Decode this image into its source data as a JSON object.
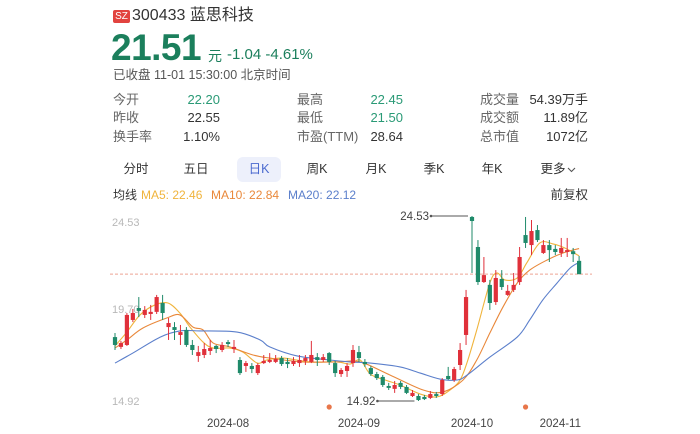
{
  "header": {
    "exchange_badge": "SZ",
    "code_name": "300433 蓝思科技",
    "price": "21.51",
    "unit": "元",
    "change": "-1.04 -4.61%",
    "status": "已收盘 11-01 15:30:00 北京时间"
  },
  "stats": [
    [
      {
        "label": "今开",
        "value": "22.20",
        "tone": "down"
      },
      {
        "label": "最高",
        "value": "22.45",
        "tone": "down"
      },
      {
        "label": "成交量",
        "value": "54.39万手",
        "tone": "neutral"
      }
    ],
    [
      {
        "label": "昨收",
        "value": "22.55",
        "tone": "neutral"
      },
      {
        "label": "最低",
        "value": "21.50",
        "tone": "down"
      },
      {
        "label": "成交额",
        "value": "11.89亿",
        "tone": "neutral"
      }
    ],
    [
      {
        "label": "换手率",
        "value": "1.10%",
        "tone": "neutral"
      },
      {
        "label": "市盈(TTM)",
        "value": "28.64",
        "tone": "neutral"
      },
      {
        "label": "总市值",
        "value": "1072亿",
        "tone": "neutral"
      }
    ]
  ],
  "tabs": [
    {
      "label": "分时"
    },
    {
      "label": "五日"
    },
    {
      "label": "日K"
    },
    {
      "label": "周K"
    },
    {
      "label": "月K"
    },
    {
      "label": "季K"
    },
    {
      "label": "年K"
    },
    {
      "label": "更多"
    }
  ],
  "active_tab": 2,
  "ma_legend": {
    "label": "均线",
    "ma5": "MA5: 22.46",
    "ma10": "MA10: 22.84",
    "ma20": "MA20: 22.12"
  },
  "adjust_label": "前复权",
  "colors": {
    "price_down": "#1b7f5c",
    "candle_up": "#e0303a",
    "candle_down": "#1f8a6a",
    "ma5": "#f0b43c",
    "ma10": "#e9883a",
    "ma20": "#5b7fcb",
    "badge": "#e2433f",
    "event_marker": "#e8764a",
    "current_price_line": "#eda393"
  },
  "chart_data": {
    "type": "candlestick",
    "title": "300433 蓝思科技 日K",
    "xlabel": "",
    "ylabel": "",
    "ylim": [
      14.92,
      24.53
    ],
    "grid": false,
    "legend_position": "top-left",
    "y_ticks": [
      {
        "value": 24.53,
        "label": "24.53"
      },
      {
        "value": 19.7,
        "label": "19.70"
      },
      {
        "value": 14.92,
        "label": "14.92"
      }
    ],
    "x_ticks": [
      {
        "index": 19,
        "label": "2024-08"
      },
      {
        "index": 41,
        "label": "2024-09"
      },
      {
        "index": 60,
        "label": "2024-10"
      },
      {
        "index": 78,
        "label": "2024-11"
      }
    ],
    "current_price": 21.51,
    "annotations": [
      {
        "index": 60,
        "value": 24.53,
        "label": "24.53",
        "kind": "max"
      },
      {
        "index": 51,
        "value": 14.92,
        "label": "14.92",
        "kind": "min"
      }
    ],
    "event_markers": [
      {
        "index": 36
      },
      {
        "index": 69
      }
    ],
    "ohlc_fields": [
      "open",
      "high",
      "low",
      "close"
    ],
    "candles": [
      [
        18.24,
        18.45,
        17.57,
        17.83
      ],
      [
        17.73,
        18.04,
        17.62,
        17.93
      ],
      [
        17.83,
        19.49,
        17.78,
        19.39
      ],
      [
        19.13,
        19.7,
        19.02,
        19.49
      ],
      [
        19.75,
        20.32,
        19.28,
        19.6
      ],
      [
        19.39,
        19.85,
        19.23,
        19.65
      ],
      [
        19.44,
        19.91,
        19.13,
        19.55
      ],
      [
        19.55,
        20.43,
        19.44,
        20.32
      ],
      [
        20.01,
        20.43,
        19.13,
        19.49
      ],
      [
        18.76,
        19.23,
        18.09,
        18.97
      ],
      [
        18.76,
        19.02,
        18.09,
        18.61
      ],
      [
        18.35,
        18.87,
        17.83,
        18.5
      ],
      [
        18.61,
        18.76,
        17.73,
        17.83
      ],
      [
        17.83,
        18.09,
        17.31,
        17.57
      ],
      [
        17.26,
        17.78,
        16.95,
        17.46
      ],
      [
        17.31,
        17.93,
        17.15,
        17.62
      ],
      [
        17.52,
        18.09,
        17.31,
        17.67
      ],
      [
        17.78,
        17.83,
        17.41,
        17.62
      ],
      [
        17.57,
        17.98,
        17.46,
        17.83
      ],
      [
        17.98,
        18.09,
        17.73,
        17.88
      ],
      [
        17.62,
        18.09,
        17.41,
        17.73
      ],
      [
        17.05,
        17.2,
        16.27,
        16.37
      ],
      [
        16.74,
        17.0,
        16.43,
        16.89
      ],
      [
        16.74,
        16.89,
        16.37,
        16.58
      ],
      [
        16.37,
        16.89,
        16.27,
        16.79
      ],
      [
        16.89,
        17.31,
        16.84,
        17.0
      ],
      [
        16.95,
        17.41,
        16.89,
        17.05
      ],
      [
        16.95,
        17.31,
        16.89,
        17.1
      ],
      [
        17.15,
        17.26,
        16.74,
        16.84
      ],
      [
        16.95,
        17.15,
        16.63,
        16.84
      ],
      [
        16.84,
        17.2,
        16.74,
        17.0
      ],
      [
        16.89,
        17.31,
        16.69,
        17.05
      ],
      [
        17.0,
        17.31,
        16.79,
        17.15
      ],
      [
        16.95,
        18.04,
        16.89,
        17.31
      ],
      [
        17.2,
        17.41,
        16.74,
        17.05
      ],
      [
        17.05,
        17.36,
        16.95,
        17.2
      ],
      [
        17.41,
        17.46,
        16.79,
        16.95
      ],
      [
        16.89,
        17.0,
        16.17,
        16.37
      ],
      [
        16.32,
        16.63,
        16.17,
        16.53
      ],
      [
        16.48,
        16.89,
        16.17,
        16.74
      ],
      [
        16.89,
        17.83,
        16.69,
        17.57
      ],
      [
        17.46,
        17.78,
        16.95,
        17.15
      ],
      [
        16.95,
        17.1,
        16.69,
        16.84
      ],
      [
        16.63,
        16.74,
        16.22,
        16.32
      ],
      [
        16.32,
        16.43,
        16.01,
        16.11
      ],
      [
        16.17,
        16.27,
        15.65,
        15.75
      ],
      [
        15.7,
        15.86,
        15.49,
        15.6
      ],
      [
        15.55,
        15.96,
        15.34,
        15.75
      ],
      [
        15.86,
        15.96,
        15.54,
        15.65
      ],
      [
        15.65,
        15.75,
        15.28,
        15.34
      ],
      [
        15.18,
        15.49,
        15.13,
        15.34
      ],
      [
        15.18,
        15.28,
        14.92,
        14.97
      ],
      [
        15.13,
        15.23,
        14.97,
        15.02
      ],
      [
        15.08,
        15.44,
        15.02,
        15.28
      ],
      [
        15.28,
        15.39,
        15.08,
        15.18
      ],
      [
        15.28,
        16.11,
        15.18,
        16.01
      ],
      [
        16.22,
        16.69,
        16.01,
        16.06
      ],
      [
        16.01,
        16.69,
        15.91,
        16.58
      ],
      [
        16.79,
        17.93,
        16.53,
        17.57
      ],
      [
        18.35,
        20.69,
        17.83,
        20.32
      ],
      [
        24.48,
        24.53,
        21.57,
        24.27
      ],
      [
        22.92,
        23.28,
        20.95,
        21.1
      ],
      [
        21.1,
        22.4,
        21.05,
        21.46
      ],
      [
        20.95,
        21.21,
        19.65,
        20.01
      ],
      [
        20.06,
        21.72,
        19.91,
        21.31
      ],
      [
        21.26,
        21.72,
        20.69,
        20.84
      ],
      [
        20.43,
        20.95,
        20.38,
        20.64
      ],
      [
        20.69,
        21.57,
        20.58,
        20.95
      ],
      [
        21.1,
        22.92,
        20.95,
        22.4
      ],
      [
        23.54,
        24.48,
        22.87,
        23.13
      ],
      [
        23.02,
        24.32,
        22.5,
        23.75
      ],
      [
        23.8,
        24.06,
        23.18,
        23.28
      ],
      [
        22.61,
        23.28,
        22.56,
        23.02
      ],
      [
        23.02,
        23.28,
        22.14,
        22.76
      ],
      [
        22.82,
        23.02,
        22.5,
        22.66
      ],
      [
        22.61,
        23.39,
        22.4,
        22.87
      ],
      [
        22.66,
        23.39,
        22.4,
        22.76
      ],
      [
        22.7,
        22.87,
        22.14,
        22.55
      ],
      [
        22.2,
        22.45,
        21.5,
        21.51
      ]
    ],
    "series": [
      {
        "name": "MA5",
        "last": 22.46,
        "points": [
          [
            0,
            17.78
          ],
          [
            2,
            18.5
          ],
          [
            4.2,
            19.39
          ],
          [
            6.7,
            19.91
          ],
          [
            8.9,
            20.01
          ],
          [
            10.9,
            19.49
          ],
          [
            12.6,
            18.76
          ],
          [
            14.8,
            17.98
          ],
          [
            16.5,
            17.67
          ],
          [
            19.3,
            17.67
          ],
          [
            21.5,
            17.46
          ],
          [
            23.9,
            16.89
          ],
          [
            25.5,
            17.05
          ],
          [
            28.2,
            17.15
          ],
          [
            32.8,
            16.95
          ],
          [
            37.3,
            16.95
          ],
          [
            39.5,
            16.84
          ],
          [
            41.2,
            17.05
          ],
          [
            42.9,
            16.32
          ],
          [
            45.4,
            16.01
          ],
          [
            47.9,
            15.75
          ],
          [
            51.3,
            15.28
          ],
          [
            54.1,
            15.13
          ],
          [
            56.3,
            15.49
          ],
          [
            58,
            16.01
          ],
          [
            59.2,
            16.95
          ],
          [
            60.8,
            18.61
          ],
          [
            63,
            21.05
          ],
          [
            64.2,
            21.57
          ],
          [
            65.5,
            21.21
          ],
          [
            67.6,
            21.31
          ],
          [
            69.2,
            22.09
          ],
          [
            71.4,
            23.13
          ],
          [
            73.6,
            23.08
          ],
          [
            75.6,
            22.87
          ],
          [
            78,
            22.46
          ]
        ]
      },
      {
        "name": "MA10",
        "last": 22.84,
        "points": [
          [
            0,
            17.67
          ],
          [
            2,
            18.09
          ],
          [
            4.7,
            18.71
          ],
          [
            8.7,
            19.23
          ],
          [
            10.9,
            19.39
          ],
          [
            13.1,
            18.76
          ],
          [
            14.8,
            18.61
          ],
          [
            16.5,
            17.93
          ],
          [
            19.3,
            17.73
          ],
          [
            23.2,
            17.31
          ],
          [
            26,
            17.15
          ],
          [
            31.6,
            16.95
          ],
          [
            37.3,
            16.95
          ],
          [
            41.2,
            16.95
          ],
          [
            46.2,
            16.27
          ],
          [
            51.8,
            15.49
          ],
          [
            55.1,
            15.39
          ],
          [
            58.5,
            16.01
          ],
          [
            60.8,
            17.05
          ],
          [
            63,
            18.45
          ],
          [
            65.2,
            19.8
          ],
          [
            67.6,
            21.05
          ],
          [
            69.7,
            21.72
          ],
          [
            72.6,
            22.24
          ],
          [
            75.3,
            22.61
          ],
          [
            78,
            22.84
          ]
        ]
      },
      {
        "name": "MA20",
        "last": 22.12,
        "points": [
          [
            0,
            16.89
          ],
          [
            3,
            17.41
          ],
          [
            7.6,
            18.24
          ],
          [
            10.9,
            18.56
          ],
          [
            14.3,
            18.56
          ],
          [
            20.5,
            18.5
          ],
          [
            24.4,
            18.09
          ],
          [
            26,
            17.73
          ],
          [
            30.6,
            17.26
          ],
          [
            36.1,
            17.05
          ],
          [
            39.5,
            16.95
          ],
          [
            42.9,
            16.89
          ],
          [
            47.9,
            16.69
          ],
          [
            51.3,
            16.37
          ],
          [
            54.6,
            16.06
          ],
          [
            57.5,
            16.01
          ],
          [
            59.2,
            16.27
          ],
          [
            63,
            17.2
          ],
          [
            67.6,
            18.24
          ],
          [
            69.7,
            19.13
          ],
          [
            71.9,
            20.17
          ],
          [
            74.3,
            21.05
          ],
          [
            76.5,
            21.83
          ],
          [
            78,
            22.12
          ]
        ]
      }
    ]
  }
}
